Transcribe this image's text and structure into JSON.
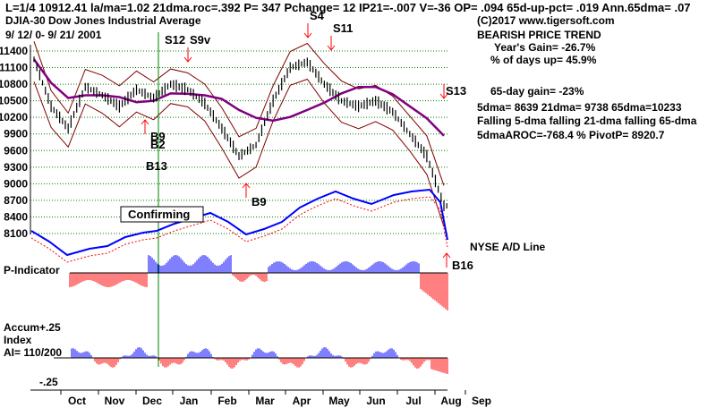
{
  "header": {
    "line1": "L=1/4   10912.41   la/ma=1.02 21dma.roc=.392 P=   347 Pchange=   12 IP21=-.007 V=-36 OP= .094 65d-up-pct= .019 Ann.65dma= .07",
    "index_name": "DJIA-30  Dow Jones Industrial Average",
    "date_range": "9/ 12/ 0-  9/ 21/ 2001",
    "copyright": "(C)2017 www.tigersoft.com"
  },
  "stats": {
    "trend": "BEARISH PRICE TREND",
    "year_gain": "Year's Gain= -26.7%",
    "pct_days_up": "% of days up= 45.9%",
    "gain_65day": "65-day gain= -23%",
    "dma_line": "5dma= 8639 21dma= 9738 65dma=10233",
    "falling_line": "Falling 5-dma  falling 21-dma  falling 65-dma",
    "aroc_line": "5dmaAROC=-768.4 %  PivotP=  8920.7"
  },
  "panels": {
    "nyse_ad_label": "NYSE A/D Line",
    "p_indicator_label": "P-Indicator",
    "accum_label_1": "Accum",
    "accum_label_2": "Index",
    "ai_label": "AI= 110/200",
    "accum_top": "+.25",
    "accum_bottom": "-.25",
    "confirming": "Confirming"
  },
  "colors": {
    "price": "#000000",
    "band": "#800000",
    "ma_65": "#800080",
    "ad_line": "#0000ff",
    "ad_ma": "#ff0000",
    "positive_bar": "#0000ff",
    "negative_bar": "#ff0000",
    "grid": "#008000",
    "signal_arrow": "#ff0000",
    "marker_line": "#008000"
  },
  "chart_data": {
    "type": "line",
    "title": "DJIA-30 Dow Jones Industrial Average",
    "period": "9/12/2000 - 9/21/2001",
    "x_tick_labels": [
      "Oct",
      "Nov",
      "Dec",
      "Jan",
      "Feb",
      "Mar",
      "Apr",
      "May",
      "Jun",
      "Jul",
      "Aug",
      "Sep"
    ],
    "y_tick_labels": [
      "11400",
      "11100",
      "10800",
      "10500",
      "10200",
      "9900",
      "9600",
      "9300",
      "9000",
      "8700",
      "8400",
      "8100"
    ],
    "ylim": [
      8100,
      11400
    ],
    "price_series": [
      {
        "month": "Sep",
        "value": 11250
      },
      {
        "month": "Oct",
        "value": 10400
      },
      {
        "month": "Oct",
        "value": 10000
      },
      {
        "month": "Nov",
        "value": 10750
      },
      {
        "month": "Nov",
        "value": 10600
      },
      {
        "month": "Dec",
        "value": 10400
      },
      {
        "month": "Dec",
        "value": 10700
      },
      {
        "month": "Jan",
        "value": 10550
      },
      {
        "month": "Jan",
        "value": 10800
      },
      {
        "month": "Feb",
        "value": 10700
      },
      {
        "month": "Feb",
        "value": 10450
      },
      {
        "month": "Mar",
        "value": 10000
      },
      {
        "month": "Mar",
        "value": 9500
      },
      {
        "month": "Apr",
        "value": 9700
      },
      {
        "month": "Apr",
        "value": 10500
      },
      {
        "month": "May",
        "value": 11100
      },
      {
        "month": "May",
        "value": 11200
      },
      {
        "month": "Jun",
        "value": 10800
      },
      {
        "month": "Jun",
        "value": 10500
      },
      {
        "month": "Jul",
        "value": 10400
      },
      {
        "month": "Jul",
        "value": 10500
      },
      {
        "month": "Aug",
        "value": 10300
      },
      {
        "month": "Aug",
        "value": 9900
      },
      {
        "month": "Sep",
        "value": 9500
      },
      {
        "month": "Sep",
        "value": 8600
      }
    ],
    "signals": [
      {
        "label": "S4",
        "direction": "sell"
      },
      {
        "label": "S11",
        "direction": "sell"
      },
      {
        "label": "S12",
        "direction": "sell"
      },
      {
        "label": "S9v",
        "direction": "sell"
      },
      {
        "label": "S13",
        "direction": "sell"
      },
      {
        "label": "B9",
        "direction": "buy"
      },
      {
        "label": "B2",
        "direction": "buy"
      },
      {
        "label": "B13",
        "direction": "buy"
      },
      {
        "label": "B9",
        "direction": "buy"
      },
      {
        "label": "B16",
        "direction": "buy"
      }
    ]
  }
}
